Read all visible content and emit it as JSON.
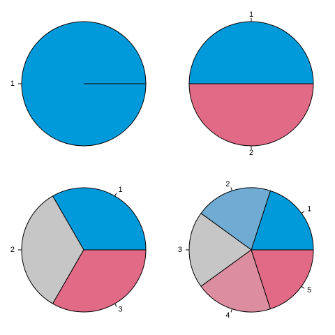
{
  "chart_data": [
    {
      "type": "pie",
      "labels": [
        "1"
      ],
      "values": [
        1
      ],
      "colors": [
        "#009ADA"
      ],
      "title": "",
      "start_angle_deg": 0,
      "direction": "counterclockwise"
    },
    {
      "type": "pie",
      "labels": [
        "1",
        "2"
      ],
      "values": [
        1,
        1
      ],
      "colors": [
        "#009ADA",
        "#E16A86"
      ],
      "title": "",
      "start_angle_deg": 0,
      "direction": "counterclockwise"
    },
    {
      "type": "pie",
      "labels": [
        "1",
        "2",
        "3"
      ],
      "values": [
        1,
        1,
        1
      ],
      "colors": [
        "#009ADA",
        "#C6C6C6",
        "#E16A86"
      ],
      "title": "",
      "start_angle_deg": 0,
      "direction": "counterclockwise"
    },
    {
      "type": "pie",
      "labels": [
        "1",
        "2",
        "3",
        "4",
        "5"
      ],
      "values": [
        1,
        1,
        1,
        1,
        1
      ],
      "colors": [
        "#009ADA",
        "#70ABD4",
        "#C6C6C6",
        "#DD8DA0",
        "#E16A86"
      ],
      "title": "",
      "start_angle_deg": 0,
      "direction": "counterclockwise"
    }
  ]
}
